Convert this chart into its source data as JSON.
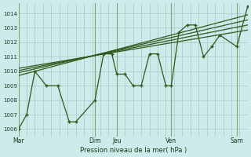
{
  "xlabel": "Pression niveau de la mer( hPa )",
  "bg_color": "#ceeaea",
  "grid_color": "#b8d8d8",
  "line_color": "#2d5a1b",
  "ylim": [
    1005.5,
    1014.7
  ],
  "yticks": [
    1006,
    1007,
    1008,
    1009,
    1010,
    1011,
    1012,
    1013,
    1014
  ],
  "day_labels": [
    "Mar",
    "",
    "Dim",
    "Jeu",
    "",
    "Ven",
    "",
    "Sam"
  ],
  "day_positions": [
    0,
    2.33,
    4.67,
    6.0,
    8.0,
    9.33,
    11.33,
    13.33
  ],
  "vline_positions": [
    0,
    4.67,
    6.0,
    9.33,
    13.33
  ],
  "series_x": [
    0,
    0.5,
    1.0,
    1.7,
    2.4,
    3.1,
    3.5,
    4.67,
    5.2,
    5.7,
    6.0,
    6.5,
    7.0,
    7.5,
    8.0,
    8.5,
    9.0,
    9.33,
    9.8,
    10.3,
    10.8,
    11.3,
    11.8,
    12.3,
    13.33,
    14.0
  ],
  "series_y": [
    1006.0,
    1007.0,
    1010.0,
    1009.0,
    1009.0,
    1006.5,
    1006.5,
    1008.0,
    1011.2,
    1011.2,
    1009.8,
    1009.8,
    1009.0,
    1009.0,
    1011.2,
    1011.2,
    1009.0,
    1009.0,
    1012.7,
    1013.2,
    1013.2,
    1011.0,
    1011.7,
    1012.5,
    1011.7,
    1014.5
  ],
  "diag_lines": [
    {
      "x": [
        0,
        14.0
      ],
      "y": [
        1009.7,
        1013.9
      ]
    },
    {
      "x": [
        0,
        14.0
      ],
      "y": [
        1009.9,
        1013.55
      ]
    },
    {
      "x": [
        0,
        14.0
      ],
      "y": [
        1010.05,
        1013.2
      ]
    },
    {
      "x": [
        0,
        14.0
      ],
      "y": [
        1010.2,
        1012.85
      ]
    }
  ],
  "xmax": 14.0
}
